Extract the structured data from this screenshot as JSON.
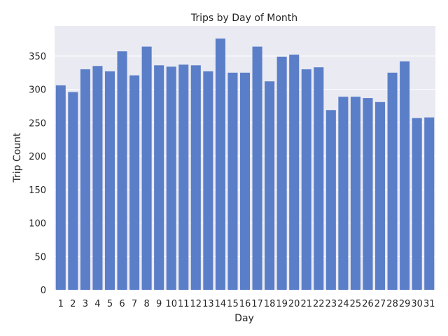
{
  "chart_data": {
    "type": "bar",
    "title": "Trips by Day of Month",
    "xlabel": "Day",
    "ylabel": "Trip Count",
    "categories": [
      "1",
      "2",
      "3",
      "4",
      "5",
      "6",
      "7",
      "8",
      "9",
      "10",
      "11",
      "12",
      "13",
      "14",
      "15",
      "16",
      "17",
      "18",
      "19",
      "20",
      "21",
      "22",
      "23",
      "24",
      "25",
      "26",
      "27",
      "28",
      "29",
      "30",
      "31"
    ],
    "values": [
      306,
      296,
      330,
      335,
      327,
      357,
      321,
      364,
      336,
      334,
      337,
      336,
      327,
      376,
      325,
      325,
      364,
      312,
      349,
      352,
      330,
      333,
      269,
      289,
      289,
      287,
      281,
      325,
      342,
      257,
      258
    ],
    "ylim": [
      0,
      395
    ],
    "yticks": [
      0,
      50,
      100,
      150,
      200,
      250,
      300,
      350
    ],
    "grid": true,
    "legend": "none",
    "colors": {
      "bar": "#5a7ec8",
      "plot_background": "#eaeaf2",
      "grid": "#ffffff"
    }
  }
}
